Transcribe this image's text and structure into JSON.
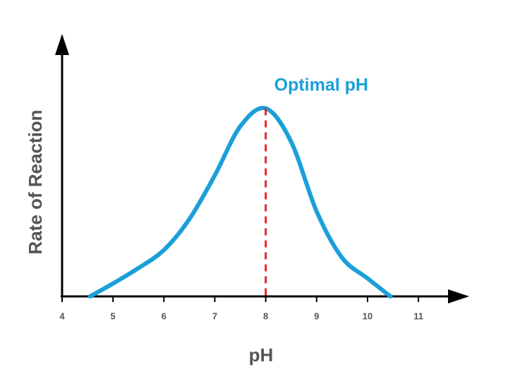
{
  "chart_data": {
    "type": "line",
    "x_label": "pH",
    "y_label": "Rate of Reaction",
    "x": [
      4.55,
      5,
      5.5,
      6,
      6.5,
      7,
      7.5,
      8,
      8.5,
      9,
      9.5,
      10,
      10.45
    ],
    "series": [
      {
        "color": "#1a9fd9",
        "values": [
          0,
          5,
          11,
          18,
          30,
          47,
          66,
          73,
          60,
          33,
          15,
          7,
          0
        ]
      }
    ],
    "xlim": [
      4,
      11.9
    ],
    "ylim": [
      0,
      100
    ],
    "xticks": [
      4,
      5,
      6,
      7,
      8,
      9,
      10,
      11
    ],
    "annotations": [
      {
        "text": "Optimal pH",
        "x": 8,
        "color": "#e8262b",
        "text_color": "#1a9fd9"
      }
    ]
  }
}
